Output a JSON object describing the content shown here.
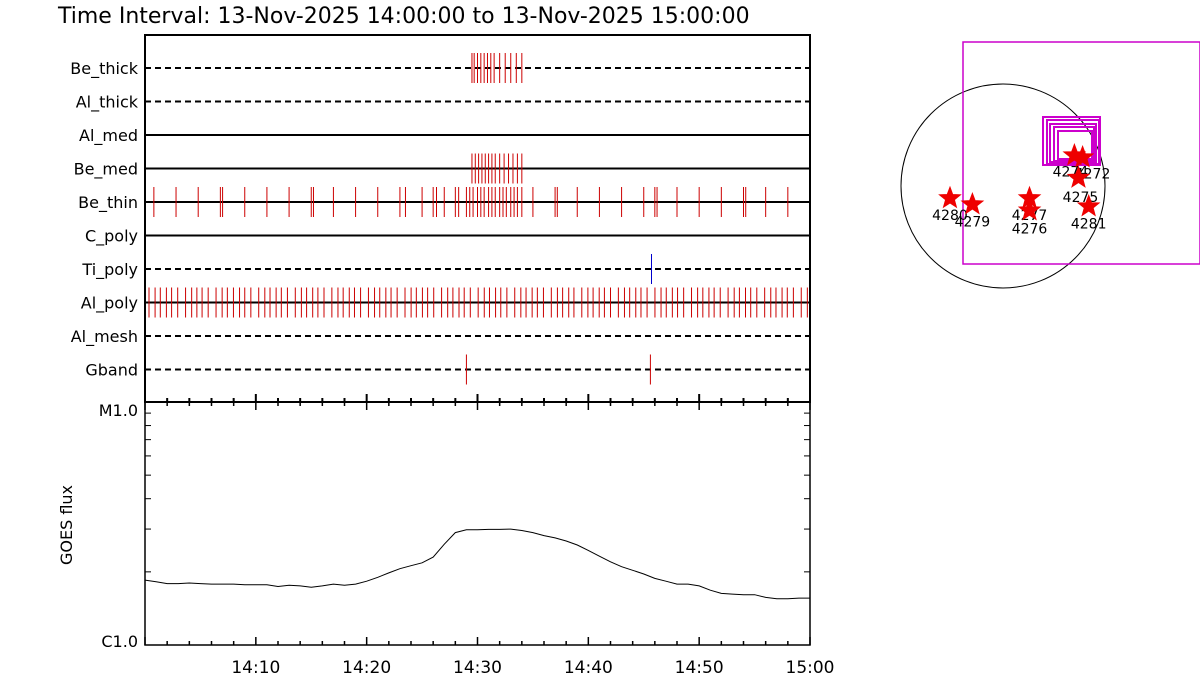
{
  "title": "Time Interval: 13-Nov-2025 14:00:00 to 13-Nov-2025 15:00:00",
  "chart_data": [
    {
      "type": "timeline",
      "xlim": [
        "14:00",
        "15:00"
      ],
      "rows": [
        {
          "label": "Be_thick",
          "style": "dashed",
          "events": [
            29.5,
            29.7,
            30.0,
            30.3,
            30.6,
            30.9,
            31.2,
            31.5,
            32.0,
            32.5,
            33.0,
            33.5,
            34.0
          ]
        },
        {
          "label": "Al_thick",
          "style": "dashed",
          "events": []
        },
        {
          "label": "Al_med",
          "style": "solid",
          "events": []
        },
        {
          "label": "Be_med",
          "style": "solid",
          "events": [
            29.5,
            29.8,
            30.1,
            30.4,
            30.7,
            31.0,
            31.3,
            31.6,
            32.0,
            32.4,
            32.8,
            33.2,
            33.6,
            34.0
          ]
        },
        {
          "label": "Be_thin",
          "style": "solid",
          "events": [
            0.8,
            2.8,
            4.8,
            6.8,
            7.0,
            9.0,
            11.0,
            13.0,
            15.0,
            15.2,
            17.0,
            19.0,
            21.0,
            23.0,
            23.5,
            25.0,
            26.0,
            26.3,
            27.0,
            28.0,
            28.3,
            29.0,
            29.3,
            29.6,
            30.0,
            30.3,
            30.6,
            31.0,
            31.3,
            31.6,
            32.0,
            32.3,
            32.6,
            33.0,
            33.3,
            33.6,
            34.0,
            35.0,
            37.0,
            37.2,
            39.0,
            41.0,
            43.0,
            45.0,
            46.0,
            46.2,
            48.0,
            50.0,
            52.0,
            54.0,
            54.2,
            56.0,
            58.0
          ]
        },
        {
          "label": "C_poly",
          "style": "solid",
          "events": []
        },
        {
          "label": "Ti_poly",
          "style": "dashed",
          "events": [
            45.7
          ],
          "color": "#0000cc"
        },
        {
          "label": "Al_poly",
          "style": "solid",
          "events": [],
          "dense": true
        },
        {
          "label": "Al_mesh",
          "style": "dashed",
          "events": []
        },
        {
          "label": "Gband",
          "style": "dashed",
          "events": [
            29.0,
            45.6
          ]
        }
      ]
    },
    {
      "type": "line",
      "ylabel": "GOES flux",
      "ytick_labels": [
        "M1.0",
        "C1.0"
      ],
      "xtick_labels": [
        "14:10",
        "14:20",
        "14:30",
        "14:40",
        "14:50",
        "15:00"
      ],
      "xticks_min": [
        10,
        20,
        30,
        40,
        50,
        60
      ],
      "ylim_log": [
        -6,
        -5
      ],
      "x": [
        0,
        1,
        2,
        3,
        4,
        5,
        6,
        7,
        8,
        9,
        10,
        11,
        12,
        13,
        14,
        15,
        16,
        17,
        18,
        19,
        20,
        21,
        22,
        23,
        24,
        25,
        26,
        27,
        28,
        29,
        30,
        31,
        32,
        33,
        34,
        35,
        36,
        37,
        38,
        39,
        40,
        41,
        42,
        43,
        44,
        45,
        46,
        47,
        48,
        49,
        50,
        51,
        52,
        53,
        54,
        55,
        56,
        57,
        58,
        59,
        60
      ],
      "y": [
        1.85,
        1.82,
        1.79,
        1.79,
        1.8,
        1.79,
        1.78,
        1.78,
        1.78,
        1.77,
        1.77,
        1.77,
        1.74,
        1.76,
        1.75,
        1.73,
        1.75,
        1.78,
        1.76,
        1.78,
        1.83,
        1.9,
        1.98,
        2.06,
        2.12,
        2.18,
        2.3,
        2.6,
        2.9,
        2.98,
        2.98,
        2.99,
        2.99,
        3.0,
        2.96,
        2.9,
        2.82,
        2.76,
        2.68,
        2.58,
        2.45,
        2.32,
        2.2,
        2.1,
        2.03,
        1.96,
        1.88,
        1.83,
        1.78,
        1.78,
        1.75,
        1.68,
        1.63,
        1.62,
        1.61,
        1.61,
        1.57,
        1.55,
        1.55,
        1.56,
        1.56
      ]
    },
    {
      "type": "scatter",
      "points": [
        {
          "label": "4274",
          "x": 0.7,
          "y": 0.3
        },
        {
          "label": "4272",
          "x": 0.78,
          "y": 0.28
        },
        {
          "label": "4275",
          "x": 0.74,
          "y": 0.08
        },
        {
          "label": "4280",
          "x": -0.52,
          "y": -0.12
        },
        {
          "label": "4279",
          "x": -0.3,
          "y": -0.18
        },
        {
          "label": "4277",
          "x": 0.26,
          "y": -0.12
        },
        {
          "label": "4276",
          "x": 0.26,
          "y": -0.24
        },
        {
          "label": "4281",
          "x": 0.84,
          "y": -0.2
        }
      ]
    }
  ]
}
